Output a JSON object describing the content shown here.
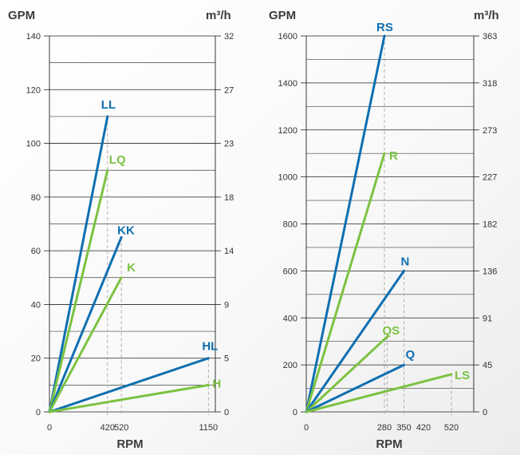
{
  "colors": {
    "blue": "#0e6fb1",
    "green": "#7cc243",
    "grid": "#222222",
    "drop": "#a8a8a8",
    "text": "#3c3c3c",
    "bg_shade": "#efefef"
  },
  "chart_data": [
    {
      "type": "line",
      "ylabel_left": "GPM",
      "ylabel_right": "m³/h",
      "xlabel": "RPM",
      "ylim": [
        0,
        140
      ],
      "xlim": [
        0,
        1200
      ],
      "yticks_left": [
        "0",
        "20",
        "40",
        "60",
        "80",
        "100",
        "120",
        "140"
      ],
      "yticks_right": [
        "0",
        "5",
        "9",
        "14",
        "18",
        "23",
        "27",
        "32"
      ],
      "xticks": [
        "0",
        "420",
        "520",
        "1150"
      ],
      "series": [
        {
          "name": "LL",
          "color": "blue",
          "x": [
            0,
            420
          ],
          "y": [
            0,
            110
          ]
        },
        {
          "name": "LQ",
          "color": "green",
          "x": [
            0,
            420
          ],
          "y": [
            0,
            90
          ]
        },
        {
          "name": "KK",
          "color": "blue",
          "x": [
            0,
            520
          ],
          "y": [
            0,
            65
          ]
        },
        {
          "name": "K",
          "color": "green",
          "x": [
            0,
            520
          ],
          "y": [
            0,
            50
          ]
        },
        {
          "name": "HL",
          "color": "blue",
          "x": [
            0,
            1150
          ],
          "y": [
            0,
            20
          ]
        },
        {
          "name": "H",
          "color": "green",
          "x": [
            0,
            1150
          ],
          "y": [
            0,
            10
          ]
        }
      ]
    },
    {
      "type": "line",
      "ylabel_left": "GPM",
      "ylabel_right": "m³/h",
      "xlabel": "RPM",
      "ylim": [
        0,
        1600
      ],
      "xlim": [
        0,
        600
      ],
      "yticks_left": [
        "0",
        "200",
        "400",
        "600",
        "800",
        "1000",
        "1200",
        "1400",
        "1600"
      ],
      "yticks_right": [
        "0",
        "45",
        "91",
        "136",
        "182",
        "227",
        "273",
        "318",
        "363"
      ],
      "xticks": [
        "0",
        "280",
        "290",
        "350",
        "420",
        "520"
      ],
      "xtick_labels": [
        "0",
        "280",
        "",
        "350",
        "420",
        "520"
      ],
      "series": [
        {
          "name": "RS",
          "color": "blue",
          "x": [
            0,
            280
          ],
          "y": [
            0,
            1600
          ]
        },
        {
          "name": "R",
          "color": "green",
          "x": [
            0,
            280
          ],
          "y": [
            0,
            1100
          ]
        },
        {
          "name": "N",
          "color": "blue",
          "x": [
            0,
            350
          ],
          "y": [
            0,
            600
          ]
        },
        {
          "name": "QS",
          "color": "green",
          "x": [
            0,
            290
          ],
          "y": [
            0,
            320
          ]
        },
        {
          "name": "Q",
          "color": "blue",
          "x": [
            0,
            350
          ],
          "y": [
            0,
            200
          ]
        },
        {
          "name": "LS",
          "color": "green",
          "x": [
            0,
            520
          ],
          "y": [
            0,
            160
          ]
        }
      ]
    }
  ]
}
